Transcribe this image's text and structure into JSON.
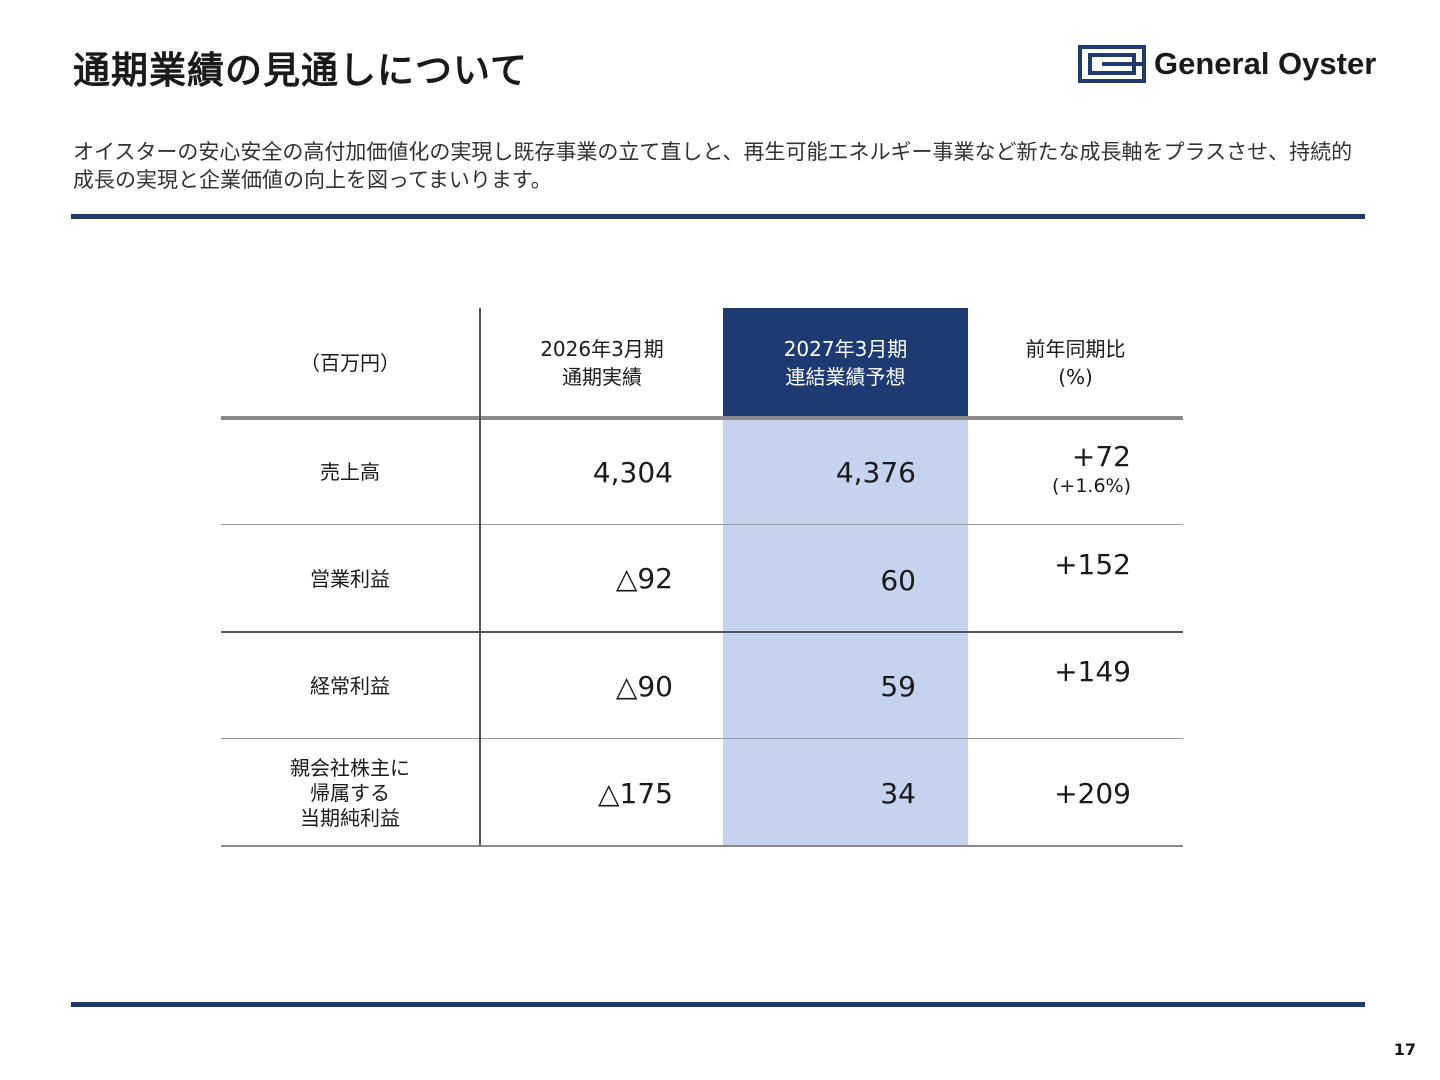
{
  "header": {
    "title": "通期業績の見通しについて",
    "logo_text": "General Oyster"
  },
  "lead": "オイスターの安心安全の高付加価値化の実現し既存事業の立て直しと、再生可能エネルギー事業など新たな成長軸をプラスさせ、持続的成長の実現と企業価値の向上を図ってまいります。",
  "table": {
    "headers": {
      "unit": "（百万円）",
      "col1_line1": "2026年3月期",
      "col1_line2": "通期実績",
      "col2_line1": "2027年3月期",
      "col2_line2": "連結業績予想",
      "col3_line1": "前年同期比",
      "col3_line2": "(%)"
    },
    "rows": [
      {
        "label_lines": [
          "売上高"
        ],
        "actual": "4,304",
        "forecast": "4,376",
        "change": "+72",
        "change_pct": "(+1.6%)"
      },
      {
        "label_lines": [
          "営業利益"
        ],
        "actual": "△92",
        "forecast": "60",
        "change": "+152",
        "change_pct": ""
      },
      {
        "label_lines": [
          "経常利益"
        ],
        "actual": "△90",
        "forecast": "59",
        "change": "+149",
        "change_pct": ""
      },
      {
        "label_lines": [
          "親会社株主に",
          "帰属する",
          "当期純利益"
        ],
        "actual": "△175",
        "forecast": "34",
        "change": "+209",
        "change_pct": ""
      }
    ]
  },
  "page_number": "17",
  "colors": {
    "navy": "#1e3a73",
    "highlight": "#c5d3ee"
  }
}
